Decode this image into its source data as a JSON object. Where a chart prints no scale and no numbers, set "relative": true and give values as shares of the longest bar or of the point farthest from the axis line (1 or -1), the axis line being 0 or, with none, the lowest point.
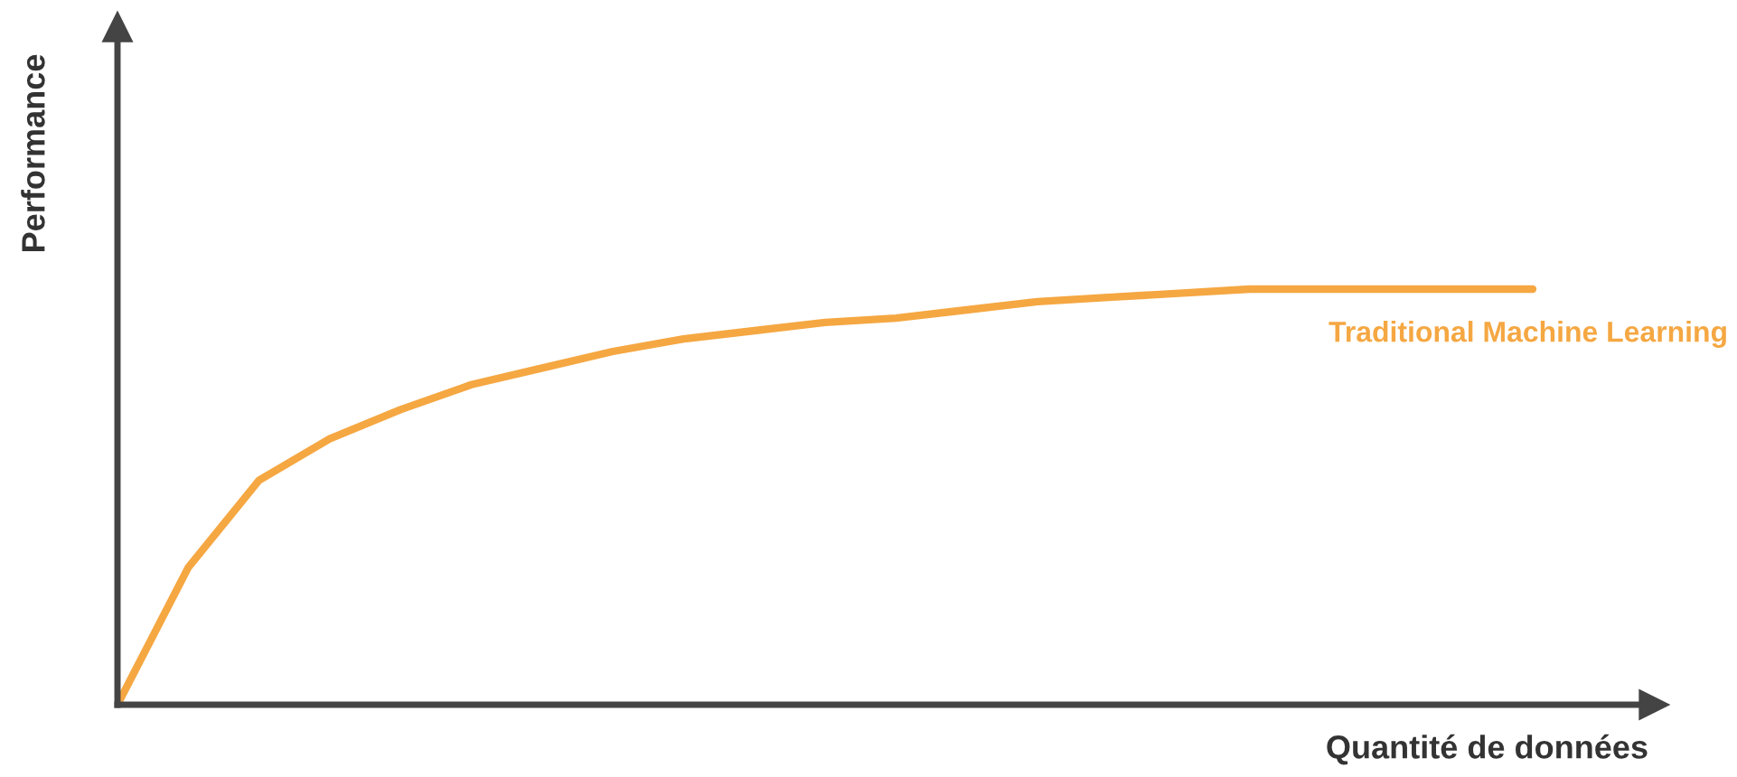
{
  "chart_data": {
    "type": "line",
    "relative": true,
    "xlabel": "Quantité de données",
    "ylabel": "Performance",
    "categories": [
      null,
      null,
      null,
      null,
      null,
      null,
      null,
      null,
      null,
      null,
      null,
      null,
      null,
      null,
      null,
      null,
      null,
      null,
      null,
      null,
      null
    ],
    "series": [
      {
        "name": "Traditional Machine Learning",
        "color": "#f5a742",
        "values": [
          0,
          0.33,
          0.54,
          0.64,
          0.71,
          0.77,
          0.81,
          0.85,
          0.88,
          0.9,
          0.92,
          0.93,
          0.95,
          0.97,
          0.98,
          0.99,
          1,
          1,
          1,
          1,
          1
        ]
      }
    ],
    "legend": false,
    "marker": "none",
    "line_style": "solid"
  }
}
